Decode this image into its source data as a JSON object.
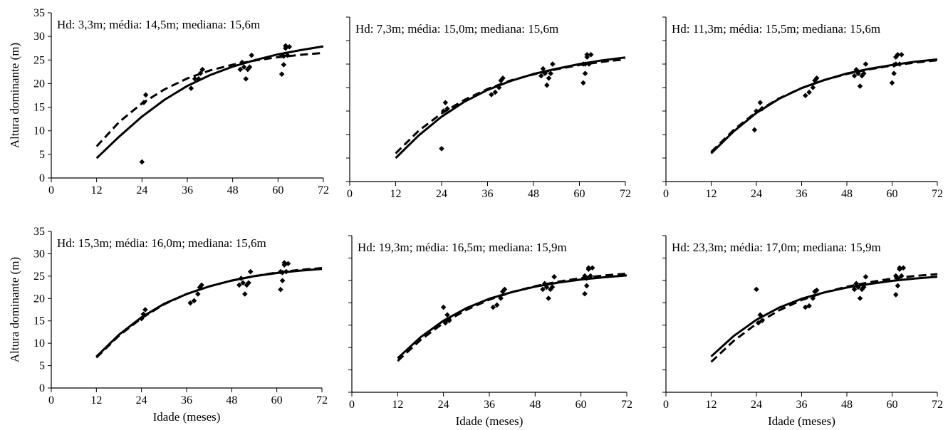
{
  "chart_data": [
    {
      "type": "scatter+line",
      "annotation": "Hd: 3,3m; média: 14,5m; mediana: 15,6m",
      "ylabel": "Altura dominante (m)",
      "xlabel": "",
      "xlim": [
        0,
        72
      ],
      "ylim": [
        0,
        35
      ],
      "x_ticks": [
        "0",
        "12",
        "24",
        "36",
        "48",
        "60",
        "72"
      ],
      "y_ticks": [
        "0",
        "5",
        "10",
        "15",
        "20",
        "25",
        "30",
        "35"
      ],
      "points": [
        [
          24,
          3.4
        ],
        [
          24.5,
          16
        ],
        [
          25,
          17.6
        ],
        [
          37,
          19
        ],
        [
          38,
          21
        ],
        [
          39,
          21
        ],
        [
          39.5,
          22.2
        ],
        [
          40,
          23
        ],
        [
          50,
          23
        ],
        [
          50.5,
          24.5
        ],
        [
          51,
          23.5
        ],
        [
          51.5,
          21
        ],
        [
          52,
          23
        ],
        [
          52.5,
          23.5
        ],
        [
          53,
          26
        ],
        [
          61,
          22
        ],
        [
          61.5,
          24
        ],
        [
          61,
          26
        ],
        [
          62,
          27.5
        ],
        [
          62,
          28
        ],
        [
          62.5,
          26
        ],
        [
          63,
          27.8
        ],
        [
          61.5,
          25.8
        ]
      ],
      "series": [
        {
          "style": "solid",
          "x": [
            12,
            18,
            24,
            30,
            36,
            42,
            48,
            54,
            60,
            66,
            72
          ],
          "y": [
            4.2,
            8.8,
            13.0,
            16.6,
            19.5,
            21.8,
            23.6,
            25.0,
            26.2,
            27.1,
            27.9
          ]
        },
        {
          "style": "dashed",
          "x": [
            12,
            18,
            24,
            30,
            36,
            42,
            48,
            54,
            60,
            66,
            72
          ],
          "y": [
            6.7,
            11.9,
            15.8,
            18.8,
            21.1,
            22.8,
            24.0,
            24.9,
            25.6,
            26.1,
            26.5
          ]
        }
      ]
    },
    {
      "type": "scatter+line",
      "annotation": "Hd: 7,3m; média: 15,0m; mediana: 15,6m",
      "ylabel": "",
      "xlabel": "",
      "xlim": [
        0,
        72
      ],
      "ylim": [
        0,
        35
      ],
      "x_ticks": [
        "0",
        "12",
        "24",
        "36",
        "48",
        "60",
        "72"
      ],
      "y_ticks": [],
      "points": [
        [
          24,
          7
        ],
        [
          24.5,
          15
        ],
        [
          25,
          16.8
        ],
        [
          25.5,
          15.5
        ],
        [
          37,
          18.5
        ],
        [
          38,
          19
        ],
        [
          39,
          20
        ],
        [
          39.5,
          21.5
        ],
        [
          40,
          22
        ],
        [
          50,
          22.5
        ],
        [
          50.5,
          24
        ],
        [
          51,
          23
        ],
        [
          51.5,
          20.5
        ],
        [
          52,
          22
        ],
        [
          52.5,
          23
        ],
        [
          53,
          25
        ],
        [
          61,
          21
        ],
        [
          61.5,
          23
        ],
        [
          61,
          25
        ],
        [
          62,
          26.5
        ],
        [
          62,
          27
        ],
        [
          62.5,
          25
        ],
        [
          63,
          27
        ],
        [
          61.5,
          25
        ]
      ],
      "series": [
        {
          "style": "solid",
          "x": [
            12,
            18,
            24,
            30,
            36,
            42,
            48,
            54,
            60,
            66,
            72
          ],
          "y": [
            5.0,
            9.8,
            13.8,
            17.0,
            19.5,
            21.4,
            22.9,
            24.0,
            25.0,
            25.8,
            26.4
          ]
        },
        {
          "style": "dashed",
          "x": [
            12,
            18,
            24,
            30,
            36,
            42,
            48,
            54,
            60,
            66,
            72
          ],
          "y": [
            6.0,
            10.8,
            14.5,
            17.4,
            19.7,
            21.5,
            22.8,
            23.9,
            24.8,
            25.5,
            26.0
          ]
        }
      ]
    },
    {
      "type": "scatter+line",
      "annotation": "Hd: 11,3m; média: 15,5m; mediana: 15,6m",
      "ylabel": "",
      "xlabel": "",
      "xlim": [
        0,
        72
      ],
      "ylim": [
        0,
        35
      ],
      "x_ticks": [
        "0",
        "12",
        "24",
        "36",
        "48",
        "60",
        "72"
      ],
      "y_ticks": [],
      "points": [
        [
          23.5,
          11
        ],
        [
          24,
          15
        ],
        [
          25,
          16.8
        ],
        [
          25.5,
          15.5
        ],
        [
          37,
          18.3
        ],
        [
          38,
          19
        ],
        [
          39,
          20
        ],
        [
          39.5,
          21.5
        ],
        [
          40,
          22
        ],
        [
          50,
          22.5
        ],
        [
          50.5,
          23.8
        ],
        [
          51,
          23
        ],
        [
          51.5,
          20.3
        ],
        [
          52,
          22.5
        ],
        [
          52.5,
          23
        ],
        [
          53,
          25
        ],
        [
          60,
          21
        ],
        [
          60.5,
          23
        ],
        [
          61,
          25
        ],
        [
          61,
          26.5
        ],
        [
          61.5,
          27
        ],
        [
          62,
          25
        ],
        [
          62.5,
          27
        ],
        [
          60.5,
          24.8
        ]
      ],
      "series": [
        {
          "style": "solid",
          "x": [
            12,
            18,
            24,
            30,
            36,
            42,
            48,
            54,
            60,
            66,
            72
          ],
          "y": [
            6.0,
            10.7,
            14.6,
            17.6,
            19.9,
            21.6,
            23.0,
            24.0,
            24.8,
            25.5,
            26.0
          ]
        },
        {
          "style": "dashed",
          "x": [
            12,
            18,
            24,
            30,
            36,
            42,
            48,
            54,
            60,
            66,
            72
          ],
          "y": [
            6.3,
            11.0,
            14.8,
            17.7,
            19.9,
            21.6,
            22.9,
            23.9,
            24.7,
            25.3,
            25.8
          ]
        }
      ]
    },
    {
      "type": "scatter+line",
      "annotation": "Hd: 15,3m; média: 16,0m; mediana: 15,6m",
      "ylabel": "Altura dominante (m)",
      "xlabel": "Idade (meses)",
      "xlim": [
        0,
        72
      ],
      "ylim": [
        0,
        35
      ],
      "x_ticks": [
        "0",
        "12",
        "24",
        "36",
        "48",
        "60",
        "72"
      ],
      "y_ticks": [
        "0",
        "5",
        "10",
        "15",
        "20",
        "25",
        "30",
        "35"
      ],
      "points": [
        [
          24,
          15.5
        ],
        [
          24.5,
          16.5
        ],
        [
          25,
          17.5
        ],
        [
          37,
          19
        ],
        [
          38,
          19.5
        ],
        [
          39,
          21
        ],
        [
          39.5,
          22.5
        ],
        [
          40,
          23
        ],
        [
          50,
          23
        ],
        [
          50.5,
          24.5
        ],
        [
          51,
          23.5
        ],
        [
          51.5,
          21
        ],
        [
          52,
          23
        ],
        [
          52.5,
          23.5
        ],
        [
          53,
          26
        ],
        [
          61,
          22
        ],
        [
          61.5,
          24
        ],
        [
          61,
          26
        ],
        [
          62,
          27.5
        ],
        [
          62,
          28
        ],
        [
          62.5,
          26
        ],
        [
          63,
          27.8
        ],
        [
          61.5,
          25.8
        ]
      ],
      "series": [
        {
          "style": "solid",
          "x": [
            12,
            18,
            24,
            30,
            36,
            42,
            48,
            54,
            60,
            66,
            72
          ],
          "y": [
            7.0,
            11.9,
            15.8,
            18.8,
            21.0,
            22.7,
            24.0,
            25.0,
            25.7,
            26.2,
            26.6
          ]
        },
        {
          "style": "dashed",
          "x": [
            12,
            18,
            24,
            30,
            36,
            42,
            48,
            54,
            60,
            66,
            72
          ],
          "y": [
            6.8,
            11.7,
            15.6,
            18.7,
            21.0,
            22.7,
            24.0,
            25.0,
            25.8,
            26.4,
            26.8
          ]
        }
      ]
    },
    {
      "type": "scatter+line",
      "annotation": "Hd: 19,3m; média: 16,5m; mediana: 15,9m",
      "ylabel": "",
      "xlabel": "Idade (meses)",
      "xlim": [
        0,
        72
      ],
      "ylim": [
        0,
        35
      ],
      "x_ticks": [
        "0",
        "12",
        "24",
        "36",
        "48",
        "60",
        "72"
      ],
      "y_ticks": [],
      "points": [
        [
          24,
          19
        ],
        [
          24.5,
          15.5
        ],
        [
          25,
          17.3
        ],
        [
          25.5,
          16
        ],
        [
          37,
          19
        ],
        [
          38,
          19.5
        ],
        [
          39,
          21
        ],
        [
          39.5,
          22.5
        ],
        [
          40,
          23
        ],
        [
          50,
          23
        ],
        [
          50.5,
          24.3
        ],
        [
          51,
          23.5
        ],
        [
          51.5,
          21
        ],
        [
          52,
          23
        ],
        [
          52.5,
          23.5
        ],
        [
          53,
          25.8
        ],
        [
          61,
          22
        ],
        [
          61.5,
          23.8
        ],
        [
          61,
          26
        ],
        [
          62,
          27.5
        ],
        [
          62,
          27.8
        ],
        [
          62.5,
          26
        ],
        [
          63,
          27.8
        ],
        [
          61.5,
          25.5
        ]
      ],
      "series": [
        {
          "style": "solid",
          "x": [
            12,
            18,
            24,
            30,
            36,
            42,
            48,
            54,
            60,
            66,
            72
          ],
          "y": [
            7.6,
            12.3,
            16.0,
            18.8,
            20.9,
            22.4,
            23.6,
            24.5,
            25.2,
            25.7,
            26.1
          ]
        },
        {
          "style": "dashed",
          "x": [
            12,
            18,
            24,
            30,
            36,
            42,
            48,
            54,
            60,
            66,
            72
          ],
          "y": [
            7.0,
            11.7,
            15.5,
            18.4,
            20.7,
            22.4,
            23.7,
            24.7,
            25.5,
            26.1,
            26.5
          ]
        }
      ]
    },
    {
      "type": "scatter+line",
      "annotation": "Hd: 23,3m; média: 17,0m; mediana: 15,9m",
      "ylabel": "",
      "xlabel": "Idade (meses)",
      "xlim": [
        0,
        72
      ],
      "ylim": [
        0,
        35
      ],
      "x_ticks": [
        "0",
        "12",
        "24",
        "36",
        "48",
        "60",
        "72"
      ],
      "y_ticks": [],
      "points": [
        [
          24,
          23
        ],
        [
          24.5,
          15.5
        ],
        [
          25,
          17.3
        ],
        [
          25.5,
          16
        ],
        [
          37,
          19
        ],
        [
          38,
          19.3
        ],
        [
          39,
          21
        ],
        [
          39.5,
          22.5
        ],
        [
          40,
          22.8
        ],
        [
          50,
          23
        ],
        [
          50.5,
          24.3
        ],
        [
          51,
          23.5
        ],
        [
          51.5,
          21
        ],
        [
          52,
          23
        ],
        [
          52.5,
          23.5
        ],
        [
          53,
          25.8
        ],
        [
          61,
          21.8
        ],
        [
          61.5,
          23.8
        ],
        [
          61,
          26
        ],
        [
          62,
          27.5
        ],
        [
          62,
          27.8
        ],
        [
          62.5,
          26
        ],
        [
          63,
          27.8
        ],
        [
          61.5,
          25.5
        ]
      ],
      "series": [
        {
          "style": "solid",
          "x": [
            12,
            18,
            24,
            30,
            36,
            42,
            48,
            54,
            60,
            66,
            72
          ],
          "y": [
            8.0,
            12.6,
            16.2,
            18.9,
            20.9,
            22.3,
            23.4,
            24.2,
            24.9,
            25.4,
            25.8
          ]
        },
        {
          "style": "dashed",
          "x": [
            12,
            18,
            24,
            30,
            36,
            42,
            48,
            54,
            60,
            66,
            72
          ],
          "y": [
            6.8,
            11.5,
            15.3,
            18.3,
            20.6,
            22.3,
            23.6,
            24.6,
            25.4,
            26.0,
            26.4
          ]
        }
      ]
    }
  ]
}
